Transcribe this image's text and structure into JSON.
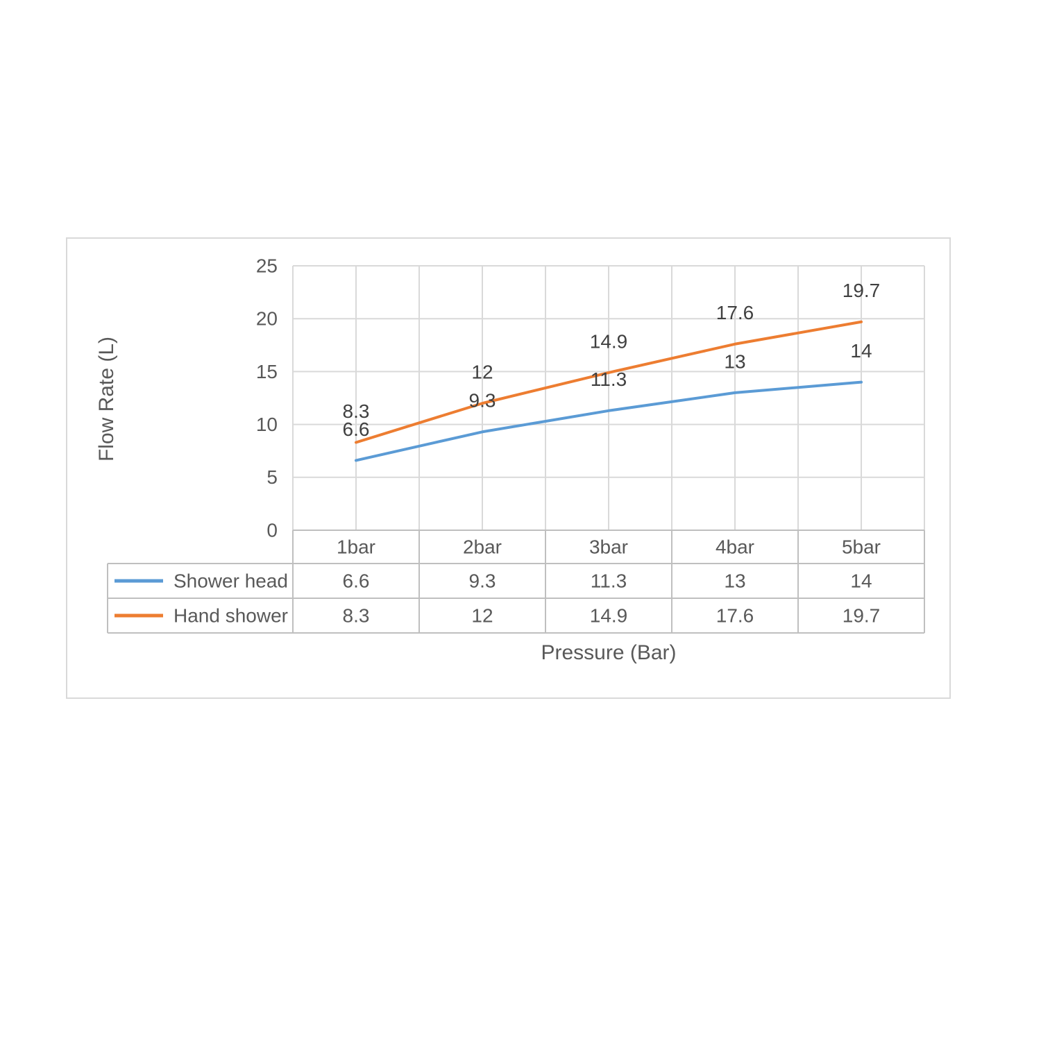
{
  "chart_data": {
    "type": "line",
    "categories": [
      "1bar",
      "2bar",
      "3bar",
      "4bar",
      "5bar"
    ],
    "series": [
      {
        "name": "Shower head",
        "color": "#5b9bd5",
        "values": [
          6.6,
          9.3,
          11.3,
          13,
          14
        ]
      },
      {
        "name": "Hand shower",
        "color": "#ed7d31",
        "values": [
          8.3,
          12,
          14.9,
          17.6,
          19.7
        ]
      }
    ],
    "xlabel": "Pressure (Bar)",
    "ylabel": "Flow Rate (L)",
    "ylim": [
      0,
      25
    ],
    "ytick_step": 5,
    "yticks": [
      "0",
      "5",
      "10",
      "15",
      "20",
      "25"
    ],
    "grid": true,
    "minor_vertical_grid": true,
    "data_labels_position": "above",
    "legend_position": "data-table-left",
    "data_table_shown": true
  },
  "style": {
    "gridline_color": "#d9d9d9",
    "table_border_color": "#bfbfbf",
    "tick_text_color": "#595959",
    "data_label_color": "#404040",
    "frame_border_color": "#d9d9d9",
    "series_line_width": 4
  }
}
